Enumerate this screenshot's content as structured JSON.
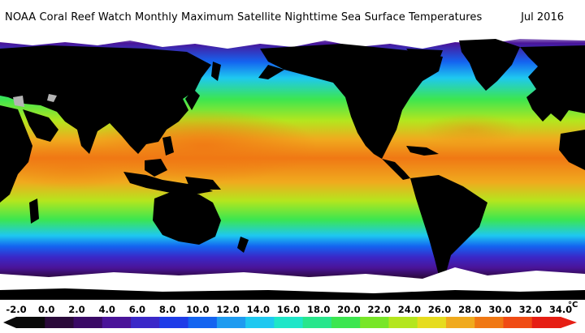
{
  "title": {
    "text": "NOAA Coral Reef Watch Monthly Maximum Satellite Nighttime Sea Surface Temperatures",
    "date": "Jul 2016"
  },
  "legend": {
    "unit": "°C",
    "ticks": [
      "-2.0",
      "0.0",
      "2.0",
      "4.0",
      "6.0",
      "8.0",
      "10.0",
      "12.0",
      "14.0",
      "16.0",
      "18.0",
      "20.0",
      "22.0",
      "24.0",
      "26.0",
      "28.0",
      "30.0",
      "32.0",
      "34.0"
    ],
    "colors": [
      "#0a0a0a",
      "#2a0a3a",
      "#3a0a66",
      "#4a1499",
      "#3a28c8",
      "#1e3ce8",
      "#1464f0",
      "#1e9bf0",
      "#1ec8f0",
      "#1ee6c8",
      "#28e68c",
      "#3ce650",
      "#78e628",
      "#b4e61e",
      "#e6dc1e",
      "#f0aa1e",
      "#f07814",
      "#f04b14",
      "#e61e14"
    ]
  },
  "map_colors": {
    "land": "#000000",
    "ice": "#ffffff",
    "warm_pool": "#f07814",
    "tropics": "#f0aa1e",
    "subtropics": "#b4e61e",
    "mid_latitude": "#3ce650",
    "cool": "#1ec8f0",
    "cold": "#1464f0",
    "polar": "#4a1499",
    "no_data": "#b4b4b4"
  }
}
